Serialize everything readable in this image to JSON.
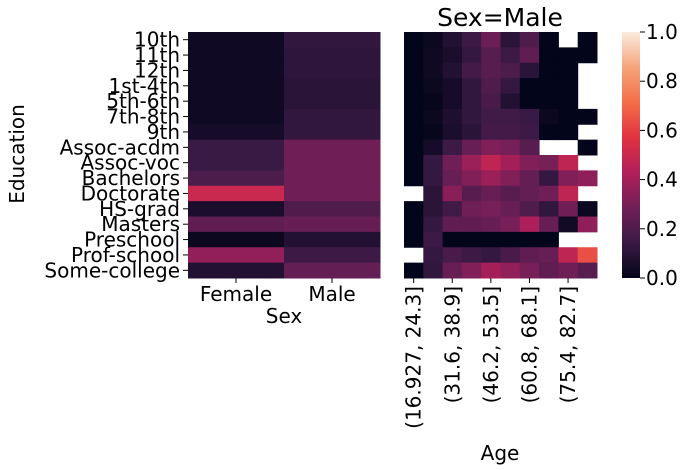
{
  "chart_data": [
    {
      "type": "heatmap",
      "xlabel": "Sex",
      "ylabel": "Education",
      "x_categories": [
        "Female",
        "Male"
      ],
      "y_categories": [
        "10th",
        "11th",
        "12th",
        "1st-4th",
        "5th-6th",
        "7th-8th",
        "9th",
        "Assoc-acdm",
        "Assoc-voc",
        "Bachelors",
        "Doctorate",
        "HS-grad",
        "Masters",
        "Preschool",
        "Prof-school",
        "Some-college"
      ],
      "values": [
        [
          0.03,
          0.12
        ],
        [
          0.03,
          0.11
        ],
        [
          0.03,
          0.11
        ],
        [
          0.03,
          0.1
        ],
        [
          0.03,
          0.1
        ],
        [
          0.03,
          0.12
        ],
        [
          0.05,
          0.12
        ],
        [
          0.14,
          0.28
        ],
        [
          0.14,
          0.28
        ],
        [
          0.19,
          0.28
        ],
        [
          0.5,
          0.28
        ],
        [
          0.06,
          0.2
        ],
        [
          0.24,
          0.26
        ],
        [
          0.02,
          0.08
        ],
        [
          0.36,
          0.15
        ],
        [
          0.08,
          0.25
        ]
      ]
    },
    {
      "type": "heatmap",
      "title": "Sex=Male",
      "xlabel": "Age",
      "x_tick_labels": [
        "(16.927, 24.3]",
        "(31.6, 38.9]",
        "(46.2, 53.5]",
        "(60.8, 68.1]",
        "(75.4, 82.7]"
      ],
      "y_categories": [
        "10th",
        "11th",
        "12th",
        "1st-4th",
        "5th-6th",
        "7th-8th",
        "9th",
        "Assoc-acdm",
        "Assoc-voc",
        "Bachelors",
        "Doctorate",
        "HS-grad",
        "Masters",
        "Preschool",
        "Prof-school",
        "Some-college"
      ],
      "columns": 10,
      "values": [
        [
          0.0,
          0.02,
          0.08,
          0.15,
          0.27,
          0.1,
          0.2,
          0.0,
          null,
          0.0
        ],
        [
          0.0,
          0.03,
          0.06,
          0.13,
          0.22,
          0.15,
          0.24,
          0.0,
          0.0,
          0.0
        ],
        [
          0.0,
          0.03,
          0.08,
          0.17,
          0.22,
          0.19,
          0.1,
          0.0,
          0.0,
          null
        ],
        [
          0.0,
          0.02,
          0.05,
          0.12,
          0.2,
          0.13,
          0.0,
          0.0,
          0.0,
          null
        ],
        [
          0.0,
          0.01,
          0.05,
          0.12,
          0.18,
          0.08,
          0.0,
          0.0,
          0.0,
          null
        ],
        [
          0.0,
          0.02,
          0.07,
          0.12,
          0.16,
          0.16,
          0.14,
          0.02,
          0.0,
          0.0
        ],
        [
          0.0,
          0.01,
          0.06,
          0.1,
          0.17,
          0.17,
          0.15,
          0.0,
          0.0,
          null
        ],
        [
          0.0,
          0.05,
          0.15,
          0.26,
          0.32,
          0.3,
          0.22,
          null,
          null,
          0.0
        ],
        [
          0.0,
          0.13,
          0.28,
          0.38,
          0.47,
          0.4,
          0.32,
          0.3,
          0.47,
          null
        ],
        [
          0.0,
          0.13,
          0.26,
          0.32,
          0.38,
          0.32,
          0.25,
          0.13,
          0.32,
          0.35
        ],
        [
          null,
          0.1,
          0.34,
          0.22,
          0.26,
          0.22,
          0.25,
          0.28,
          0.47,
          null
        ],
        [
          0.0,
          0.1,
          0.16,
          0.28,
          0.3,
          0.26,
          0.2,
          0.12,
          0.28,
          0.02
        ],
        [
          0.0,
          0.13,
          0.24,
          0.24,
          0.26,
          0.3,
          0.42,
          0.26,
          0.04,
          0.35
        ],
        [
          0.0,
          0.15,
          0.0,
          0.0,
          0.0,
          0.0,
          0.0,
          0.0,
          null,
          null
        ],
        [
          null,
          0.13,
          0.18,
          0.15,
          0.13,
          0.18,
          0.24,
          0.26,
          0.47,
          0.64
        ],
        [
          0.0,
          0.12,
          0.26,
          0.32,
          0.4,
          0.36,
          0.3,
          0.24,
          0.28,
          0.22
        ]
      ]
    }
  ],
  "colorbar": {
    "min": 0.0,
    "max": 1.0,
    "ticks": [
      "0.0",
      "0.2",
      "0.4",
      "0.6",
      "0.8",
      "1.0"
    ],
    "colormap": "rocket",
    "stops": [
      "#03051a",
      "#3a1a45",
      "#711f57",
      "#b11f5a",
      "#e13342",
      "#f36e48",
      "#f6a47c",
      "#faebdd"
    ]
  }
}
